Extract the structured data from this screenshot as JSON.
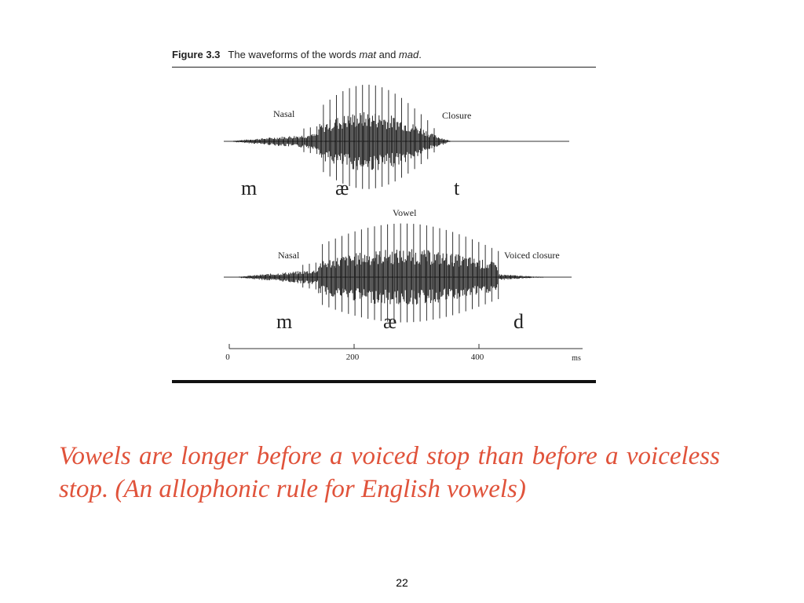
{
  "figure": {
    "number": "Figure 3.3",
    "caption_prefix": "The waveforms of the words ",
    "word1": "mat",
    "caption_mid": " and ",
    "word2": "mad",
    "caption_suffix": "."
  },
  "waveform_mat": {
    "label_nasal": "Nasal",
    "label_closure": "Closure",
    "segments": [
      "m",
      "æ",
      "t"
    ]
  },
  "waveform_mad": {
    "label_vowel": "Vowel",
    "label_nasal": "Nasal",
    "label_closure": "Voiced closure",
    "segments": [
      "m",
      "æ",
      "d"
    ]
  },
  "axis": {
    "ticks": [
      "0",
      "200",
      "400"
    ],
    "unit": "ms"
  },
  "note": "Vowels are longer before a voiced stop than before a voiceless stop. (An allophonic rule for English vowels)",
  "page_number": "22",
  "colors": {
    "note": "#e0533b",
    "ink": "#222222"
  }
}
